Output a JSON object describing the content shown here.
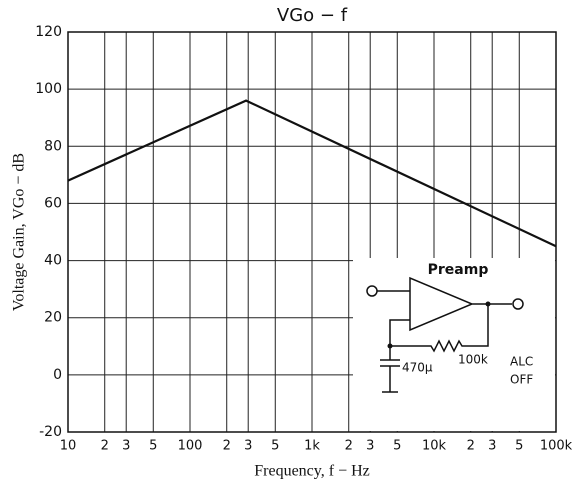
{
  "chart_data": {
    "type": "line",
    "title": "VGo − f",
    "x_label": "Frequency, f − Hz",
    "y_label": "Voltage Gain, VGo − dB",
    "x": [
      10,
      288,
      100000
    ],
    "series": [
      {
        "name": "VGo",
        "color": "#111111",
        "values": [
          68,
          96,
          45
        ]
      }
    ],
    "xlim": [
      10,
      100000
    ],
    "xscale": "log",
    "xticks": [
      10,
      {
        "value": 20,
        "label": "2"
      },
      {
        "value": 30,
        "label": "3"
      },
      {
        "value": 50,
        "label": "5"
      },
      100,
      {
        "value": 200,
        "label": "2"
      },
      {
        "value": 300,
        "label": "3"
      },
      {
        "value": 500,
        "label": "5"
      },
      {
        "value": 1000,
        "label": "1k"
      },
      {
        "value": 2000,
        "label": "2"
      },
      {
        "value": 3000,
        "label": "3"
      },
      {
        "value": 5000,
        "label": "5"
      },
      {
        "value": 10000,
        "label": "10k"
      },
      {
        "value": 20000,
        "label": "2"
      },
      {
        "value": 30000,
        "label": "3"
      },
      {
        "value": 50000,
        "label": "5"
      },
      {
        "value": 100000,
        "label": "100k"
      }
    ],
    "ylim": [
      -20,
      120
    ],
    "yticks": [
      -20,
      0,
      20,
      40,
      60,
      80,
      100,
      120
    ],
    "grid": true,
    "annotations": [
      "Preamp",
      "100k",
      "470μ",
      "ALC",
      "OFF"
    ]
  }
}
